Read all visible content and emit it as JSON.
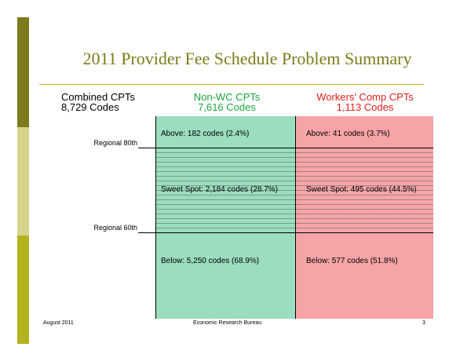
{
  "slide": {
    "title": "2011 Provider Fee Schedule Problem Summary",
    "colors": {
      "title": "#7d7b19",
      "non_wc": "#9bddbe",
      "wc": "#f7a4a8",
      "non_wc_text": "#1aa53c",
      "wc_text": "#e0201c"
    }
  },
  "headers": {
    "combined_label": "Combined CPTs",
    "combined_count": "8,729 Codes",
    "non_wc_label": "Non-WC CPTs",
    "non_wc_count": "7,616 Codes",
    "wc_label": "Workers' Comp CPTs",
    "wc_count": "1,113 Codes"
  },
  "thresholds": {
    "upper": "Regional 80th",
    "lower": "Regional 60th"
  },
  "cells": {
    "non_wc_above": "Above: 182 codes (2.4%)",
    "wc_above": "Above: 41 codes (3.7%)",
    "non_wc_sweet": "Sweet Spot: 2,184 codes (28.7%)",
    "wc_sweet": "Sweet Spot: 495 codes (44.5%)",
    "non_wc_below": "Below: 5,250 codes (68.9%)",
    "wc_below": "Below: 577 codes (51.8%)"
  },
  "footer": {
    "date": "August 2011",
    "organization": "Economic Research Bureau",
    "page": "3"
  }
}
